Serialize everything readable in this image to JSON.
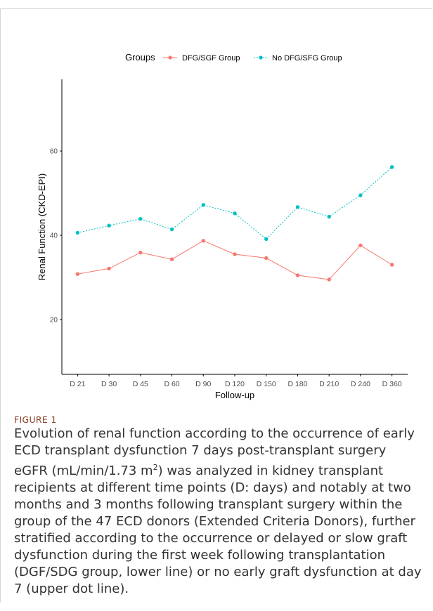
{
  "figure": {
    "label": "FIGURE 1",
    "caption_parts": {
      "p1": "Evolution of renal function according to the occurrence of early ECD transplant dysfunction 7 days post-transplant surgery eGFR (mL/min/1.73 m",
      "sup": "2",
      "p2": ") was analyzed in kidney transplant recipients at different time points (D: days) and notably at two months and 3 months following transplant surgery within the group of the 47 ECD donors (Extended Criteria Donors), further stratified according to the occurrence or delayed or slow graft dysfunction during the first week following transplantation (DGF/SDG group, lower line) or no early graft dysfunction at day 7 (upper dot line)."
    }
  },
  "chart_data": {
    "type": "line",
    "title": "",
    "xlabel": "Follow-up",
    "ylabel": "Renal Function (CKD-EPI)",
    "ylim": [
      7,
      77
    ],
    "yticks": [
      20,
      40,
      60
    ],
    "grid": false,
    "legend": {
      "title": "Groups",
      "position": "top"
    },
    "categories": [
      "D 21",
      "D 30",
      "D 45",
      "D 60",
      "D 90",
      "D 120",
      "D 150",
      "D 180",
      "D 210",
      "D 240",
      "D 360"
    ],
    "series": [
      {
        "name": "DFG/SGF Group",
        "color": "#F8766D",
        "linestyle": "solid",
        "values": [
          30.8,
          32.1,
          35.9,
          34.3,
          38.7,
          35.5,
          34.6,
          30.5,
          29.5,
          37.6,
          33.0
        ]
      },
      {
        "name": "No DFG/SFG Group",
        "color": "#00BFC4",
        "linestyle": "dotted",
        "values": [
          40.6,
          42.3,
          43.9,
          41.4,
          47.2,
          45.2,
          39.1,
          46.7,
          44.4,
          49.5,
          56.2
        ]
      }
    ]
  }
}
